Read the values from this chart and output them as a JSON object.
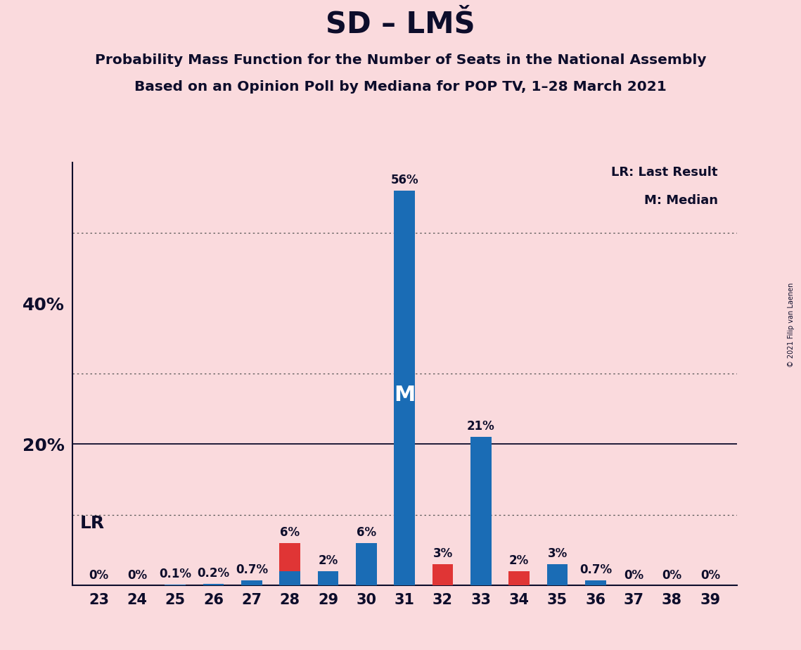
{
  "title": "SD – LMŠ",
  "subtitle1": "Probability Mass Function for the Number of Seats in the National Assembly",
  "subtitle2": "Based on an Opinion Poll by Mediana for POP TV, 1–28 March 2021",
  "copyright": "© 2021 Filip van Laenen",
  "seats": [
    23,
    24,
    25,
    26,
    27,
    28,
    29,
    30,
    31,
    32,
    33,
    34,
    35,
    36,
    37,
    38,
    39
  ],
  "blue_values": [
    0,
    0,
    0.1,
    0.2,
    0.7,
    2,
    2,
    6,
    56,
    0,
    21,
    0,
    3,
    0.7,
    0,
    0,
    0
  ],
  "red_values": [
    0,
    0,
    0,
    0,
    0,
    6,
    0,
    6,
    3,
    3,
    0,
    2,
    0,
    0.3,
    0,
    0,
    0
  ],
  "blue_color": "#1a6cb5",
  "red_color": "#e03535",
  "background_color": "#fadadd",
  "text_color": "#0d0d2b",
  "median_seat": 31,
  "bar_width": 0.55,
  "ylim_max": 60,
  "solid_grid": [
    20
  ],
  "dotted_grid": [
    10,
    30,
    50
  ],
  "ytick_positions": [
    20,
    40
  ],
  "ytick_labels": [
    "20%",
    "40%"
  ],
  "legend_lr": "LR: Last Result",
  "legend_m": "M: Median"
}
